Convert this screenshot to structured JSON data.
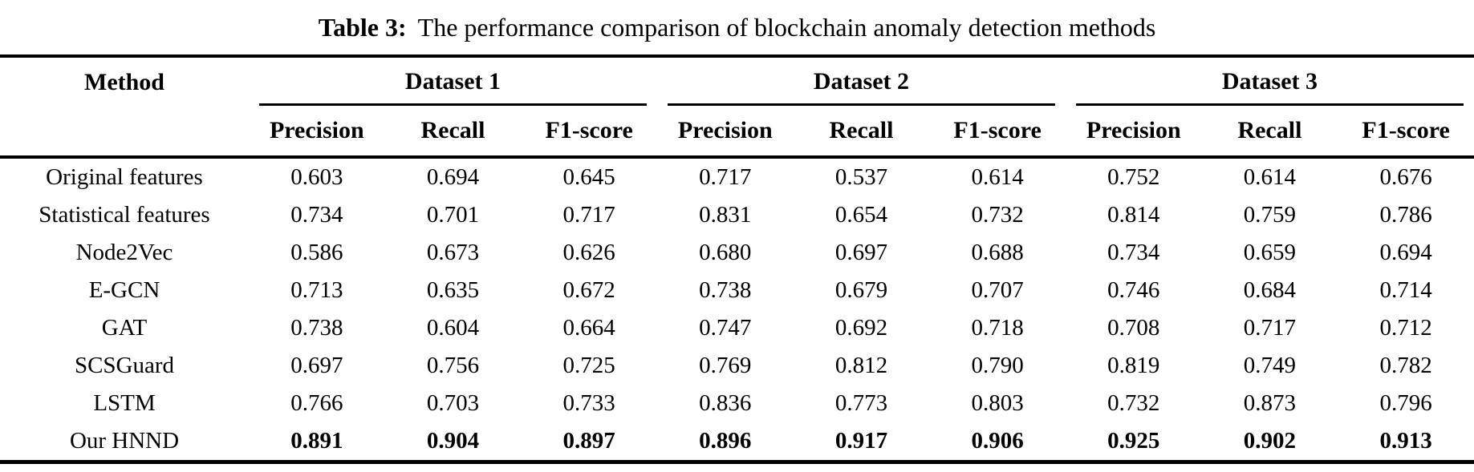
{
  "caption": {
    "label": "Table 3:",
    "text": "The performance comparison of blockchain anomaly detection methods"
  },
  "colors": {
    "text": "#000000",
    "background": "#ffffff",
    "rule": "#000000"
  },
  "table": {
    "method_header": "Method",
    "groups": [
      {
        "label": "Dataset 1"
      },
      {
        "label": "Dataset 2"
      },
      {
        "label": "Dataset 3"
      }
    ],
    "metric_headers": [
      "Precision",
      "Recall",
      "F1-score"
    ],
    "rows": [
      {
        "method": "Original features",
        "bold": false,
        "values": [
          "0.603",
          "0.694",
          "0.645",
          "0.717",
          "0.537",
          "0.614",
          "0.752",
          "0.614",
          "0.676"
        ]
      },
      {
        "method": "Statistical features",
        "bold": false,
        "values": [
          "0.734",
          "0.701",
          "0.717",
          "0.831",
          "0.654",
          "0.732",
          "0.814",
          "0.759",
          "0.786"
        ]
      },
      {
        "method": "Node2Vec",
        "bold": false,
        "values": [
          "0.586",
          "0.673",
          "0.626",
          "0.680",
          "0.697",
          "0.688",
          "0.734",
          "0.659",
          "0.694"
        ]
      },
      {
        "method": "E-GCN",
        "bold": false,
        "values": [
          "0.713",
          "0.635",
          "0.672",
          "0.738",
          "0.679",
          "0.707",
          "0.746",
          "0.684",
          "0.714"
        ]
      },
      {
        "method": "GAT",
        "bold": false,
        "values": [
          "0.738",
          "0.604",
          "0.664",
          "0.747",
          "0.692",
          "0.718",
          "0.708",
          "0.717",
          "0.712"
        ]
      },
      {
        "method": "SCSGuard",
        "bold": false,
        "values": [
          "0.697",
          "0.756",
          "0.725",
          "0.769",
          "0.812",
          "0.790",
          "0.819",
          "0.749",
          "0.782"
        ]
      },
      {
        "method": "LSTM",
        "bold": false,
        "values": [
          "0.766",
          "0.703",
          "0.733",
          "0.836",
          "0.773",
          "0.803",
          "0.732",
          "0.873",
          "0.796"
        ]
      },
      {
        "method": "Our HNND",
        "bold": true,
        "values": [
          "0.891",
          "0.904",
          "0.897",
          "0.896",
          "0.917",
          "0.906",
          "0.925",
          "0.902",
          "0.913"
        ]
      }
    ]
  }
}
